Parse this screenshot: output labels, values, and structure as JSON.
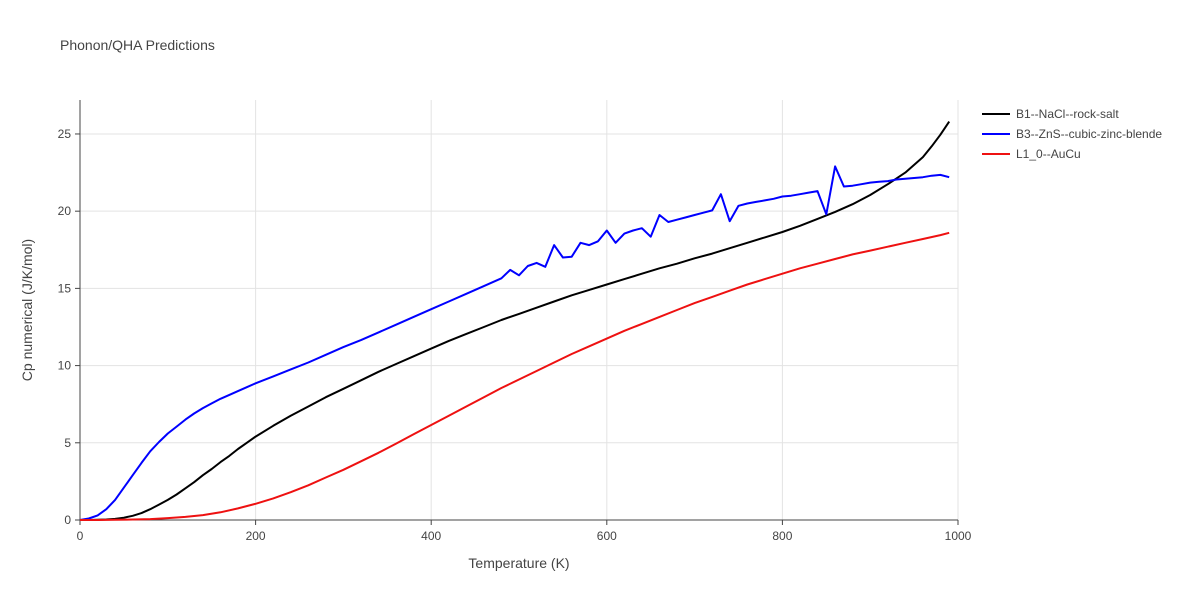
{
  "chart_data": {
    "type": "line",
    "title": "Phonon/QHA Predictions",
    "xlabel": "Temperature (K)",
    "ylabel": "Cp numerical (J/K/mol)",
    "xlim": [
      0,
      1000
    ],
    "ylim": [
      0,
      27.2
    ],
    "x_ticks": [
      0,
      200,
      400,
      600,
      800,
      1000
    ],
    "y_ticks": [
      0,
      5,
      10,
      15,
      20,
      25
    ],
    "grid": true,
    "legend_position": "top-right",
    "series": [
      {
        "name": "B1--NaCl--rock-salt",
        "color": "#000000",
        "x": [
          0,
          10,
          20,
          30,
          40,
          50,
          60,
          70,
          80,
          90,
          100,
          110,
          120,
          130,
          140,
          150,
          160,
          170,
          180,
          190,
          200,
          220,
          240,
          260,
          280,
          300,
          320,
          340,
          360,
          380,
          400,
          420,
          440,
          460,
          480,
          500,
          520,
          540,
          560,
          580,
          600,
          620,
          640,
          660,
          680,
          700,
          720,
          740,
          760,
          780,
          800,
          820,
          840,
          860,
          880,
          900,
          920,
          940,
          960,
          970,
          980,
          990
        ],
        "y": [
          0,
          0,
          0.01,
          0.03,
          0.07,
          0.15,
          0.27,
          0.45,
          0.7,
          1.0,
          1.3,
          1.65,
          2.05,
          2.45,
          2.9,
          3.3,
          3.75,
          4.15,
          4.6,
          5.0,
          5.4,
          6.1,
          6.75,
          7.35,
          7.95,
          8.5,
          9.05,
          9.6,
          10.1,
          10.6,
          11.1,
          11.6,
          12.05,
          12.5,
          12.95,
          13.35,
          13.75,
          14.15,
          14.55,
          14.9,
          15.25,
          15.6,
          15.95,
          16.3,
          16.6,
          16.95,
          17.25,
          17.6,
          17.95,
          18.3,
          18.65,
          19.05,
          19.5,
          19.95,
          20.45,
          21.05,
          21.75,
          22.5,
          23.5,
          24.2,
          24.95,
          25.8
        ]
      },
      {
        "name": "B3--ZnS--cubic-zinc-blende",
        "color": "#0000ff",
        "x": [
          0,
          10,
          20,
          30,
          40,
          50,
          60,
          70,
          80,
          90,
          100,
          110,
          120,
          130,
          140,
          150,
          160,
          170,
          180,
          190,
          200,
          220,
          240,
          260,
          280,
          290,
          300,
          320,
          340,
          360,
          380,
          400,
          420,
          440,
          460,
          480,
          490,
          500,
          510,
          520,
          530,
          540,
          550,
          560,
          570,
          580,
          590,
          600,
          610,
          620,
          630,
          640,
          650,
          660,
          670,
          680,
          690,
          700,
          710,
          720,
          730,
          740,
          750,
          760,
          770,
          780,
          790,
          800,
          810,
          820,
          830,
          840,
          850,
          860,
          870,
          880,
          890,
          900,
          910,
          920,
          930,
          940,
          950,
          960,
          970,
          980,
          990
        ],
        "y": [
          0,
          0.1,
          0.3,
          0.7,
          1.3,
          2.1,
          2.9,
          3.7,
          4.45,
          5.05,
          5.6,
          6.05,
          6.5,
          6.9,
          7.25,
          7.55,
          7.85,
          8.1,
          8.35,
          8.6,
          8.85,
          9.3,
          9.75,
          10.2,
          10.7,
          10.95,
          11.2,
          11.65,
          12.15,
          12.65,
          13.15,
          13.65,
          14.15,
          14.65,
          15.15,
          15.65,
          16.2,
          15.85,
          16.45,
          16.65,
          16.4,
          17.8,
          17.0,
          17.05,
          17.95,
          17.8,
          18.05,
          18.75,
          17.95,
          18.55,
          18.75,
          18.9,
          18.35,
          19.75,
          19.3,
          19.45,
          19.6,
          19.75,
          19.9,
          20.05,
          21.1,
          19.35,
          20.35,
          20.5,
          20.6,
          20.7,
          20.8,
          20.95,
          21.0,
          21.1,
          21.2,
          21.3,
          19.8,
          22.9,
          21.6,
          21.65,
          21.75,
          21.85,
          21.9,
          21.95,
          22.05,
          22.1,
          22.15,
          22.2,
          22.3,
          22.35,
          22.2
        ]
      },
      {
        "name": "L1_0--AuCu",
        "color": "#ee1111",
        "x": [
          0,
          20,
          40,
          60,
          80,
          100,
          120,
          140,
          160,
          180,
          200,
          220,
          240,
          260,
          280,
          300,
          320,
          340,
          360,
          380,
          400,
          420,
          440,
          460,
          480,
          500,
          520,
          540,
          560,
          580,
          600,
          620,
          640,
          660,
          680,
          700,
          720,
          740,
          760,
          780,
          800,
          820,
          840,
          860,
          880,
          900,
          920,
          940,
          960,
          980,
          990
        ],
        "y": [
          0,
          0,
          0.01,
          0.03,
          0.06,
          0.12,
          0.2,
          0.32,
          0.5,
          0.75,
          1.05,
          1.4,
          1.8,
          2.25,
          2.75,
          3.25,
          3.8,
          4.35,
          4.95,
          5.55,
          6.15,
          6.75,
          7.35,
          7.95,
          8.55,
          9.1,
          9.65,
          10.2,
          10.75,
          11.25,
          11.75,
          12.25,
          12.7,
          13.15,
          13.6,
          14.05,
          14.45,
          14.85,
          15.25,
          15.6,
          15.95,
          16.3,
          16.6,
          16.9,
          17.2,
          17.45,
          17.7,
          17.95,
          18.2,
          18.45,
          18.6
        ]
      }
    ]
  }
}
